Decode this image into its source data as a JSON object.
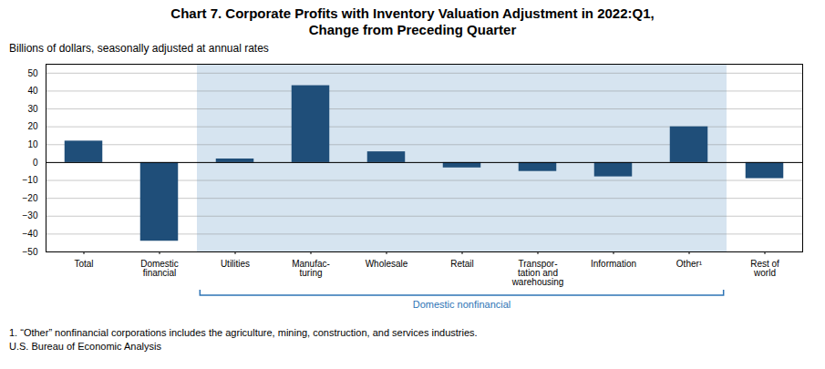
{
  "chart_data": {
    "type": "bar",
    "title": "Chart 7. Corporate Profits with Inventory Valuation Adjustment in 2022:Q1,\nChange from Preceding Quarter",
    "subtitle": "Billions of dollars, seasonally adjusted at annual rates",
    "categories": [
      "Total",
      "Domestic\nfinancial",
      "Utilities",
      "Manufac-\nturing",
      "Wholesale",
      "Retail",
      "Transpor-\ntation and\nwarehousing",
      "Information",
      "Other¹",
      "Rest of\nworld"
    ],
    "values": [
      12.0,
      -44.0,
      2.0,
      43.0,
      6.0,
      -3.0,
      -5.0,
      -8.0,
      20.0,
      -9.0
    ],
    "color": "#1F4E79",
    "ylim": [
      -50,
      55
    ],
    "yticks": [
      -50,
      -40,
      -30,
      -20,
      -10,
      0,
      10,
      20,
      30,
      40,
      50
    ],
    "grid": true,
    "annotations": [
      {
        "text": "Domestic nonfinancial",
        "start": "Utilities",
        "end": "Other¹",
        "color": "#2E74B5",
        "shade_color": "#D6E4F0"
      }
    ],
    "footnote": "1. “Other” nonfinancial corporations includes the agriculture, mining, construction, and services industries.",
    "source": "U.S. Bureau of Economic Analysis"
  }
}
